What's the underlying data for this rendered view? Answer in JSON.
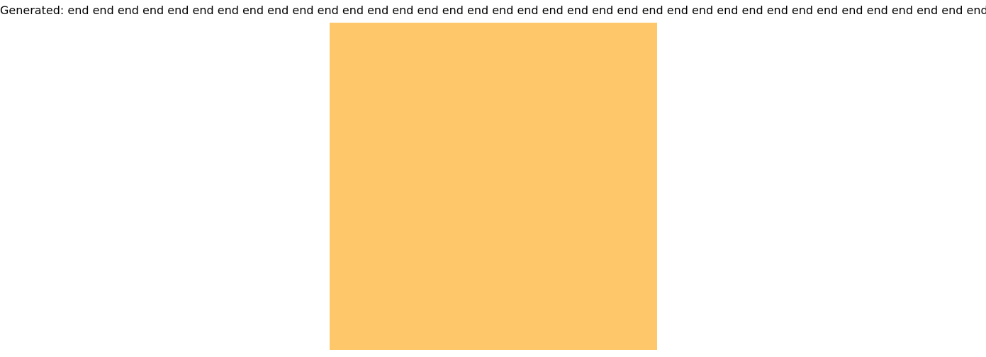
{
  "title": "Generated: end end end end end end end end end end end end end end end end end end end end end end end end end end end end end end end end end end end end end",
  "image": {
    "fill_color": "#FEC76A"
  }
}
